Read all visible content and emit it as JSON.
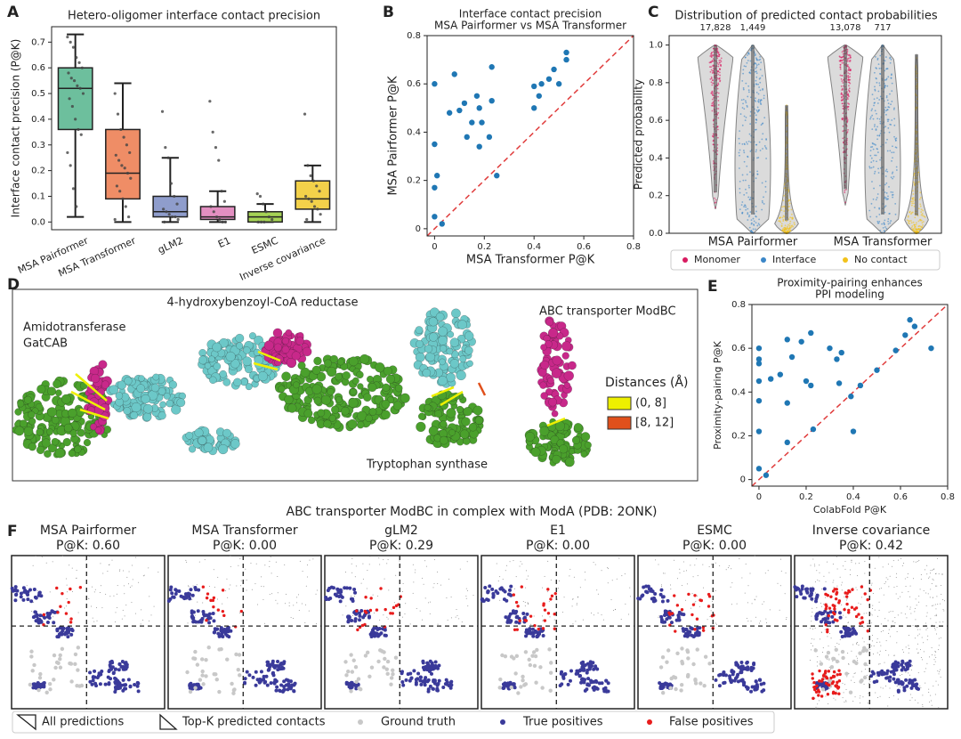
{
  "chart_data": [
    {
      "type": "box",
      "panel": "A",
      "title": "Hetero-oligomer interface contact precision",
      "ylabel": "Interface contact precision (P@K)",
      "categories": [
        "MSA Pairformer",
        "MSA Transformer",
        "gLM2",
        "E1",
        "ESMC",
        "Inverse covariance"
      ],
      "colors": [
        "#6dbf9d",
        "#ef8d66",
        "#8f9dcc",
        "#e38fc1",
        "#a5d255",
        "#f3d14a"
      ],
      "boxes": [
        {
          "min": 0.02,
          "q1": 0.36,
          "median": 0.52,
          "q3": 0.6,
          "max": 0.73,
          "points": [
            0.72,
            0.7,
            0.68,
            0.64,
            0.62,
            0.6,
            0.58,
            0.56,
            0.55,
            0.53,
            0.52,
            0.5,
            0.48,
            0.45,
            0.4,
            0.36,
            0.34,
            0.27,
            0.22,
            0.13,
            0.06
          ]
        },
        {
          "min": 0.0,
          "q1": 0.09,
          "median": 0.19,
          "q3": 0.36,
          "max": 0.54,
          "points": [
            0.5,
            0.42,
            0.36,
            0.33,
            0.3,
            0.27,
            0.26,
            0.24,
            0.22,
            0.21,
            0.19,
            0.17,
            0.14,
            0.12,
            0.09,
            0.06,
            0.02,
            0.01
          ]
        },
        {
          "min": 0.0,
          "q1": 0.02,
          "median": 0.04,
          "q3": 0.1,
          "max": 0.25,
          "points": [
            0.43,
            0.29,
            0.25,
            0.15,
            0.1,
            0.07,
            0.05,
            0.04,
            0.03,
            0.02,
            0.02,
            0.01,
            0.0
          ]
        },
        {
          "min": 0.0,
          "q1": 0.01,
          "median": 0.02,
          "q3": 0.06,
          "max": 0.12,
          "points": [
            0.47,
            0.35,
            0.29,
            0.24,
            0.12,
            0.08,
            0.06,
            0.04,
            0.02,
            0.01,
            0.0,
            0.0
          ]
        },
        {
          "min": 0.0,
          "q1": 0.0,
          "median": 0.02,
          "q3": 0.04,
          "max": 0.07,
          "points": [
            0.11,
            0.1,
            0.07,
            0.04,
            0.02,
            0.01,
            0.0,
            0.0,
            0.0
          ]
        },
        {
          "min": 0.0,
          "q1": 0.05,
          "median": 0.09,
          "q3": 0.16,
          "max": 0.22,
          "points": [
            0.42,
            0.22,
            0.18,
            0.16,
            0.14,
            0.12,
            0.1,
            0.09,
            0.08,
            0.06,
            0.05,
            0.03,
            0.01
          ]
        }
      ],
      "ylim": [
        -0.03,
        0.76
      ],
      "yticks": [
        {
          "value": 0,
          "label": "0.0"
        },
        0.1,
        0.2,
        0.3,
        0.4,
        0.5,
        0.6,
        0.7
      ]
    },
    {
      "type": "scatter",
      "panel": "B",
      "title": "Interface contact precision",
      "subtitle": "MSA Pairformer vs MSA Transformer",
      "xlabel": "MSA Transformer P@K",
      "ylabel": "MSA Pairformer P@K",
      "color": "#1f77b4",
      "diagonal": true,
      "diagonal_color": "#e03c3c",
      "x": [
        0,
        0,
        0,
        0,
        0.01,
        0.03,
        0.06,
        0.08,
        0.1,
        0.12,
        0.13,
        0.15,
        0.17,
        0.18,
        0.18,
        0.19,
        0.22,
        0.23,
        0.23,
        0.25,
        0.4,
        0.4,
        0.42,
        0.43,
        0.46,
        0.48,
        0.5,
        0.53,
        0.53
      ],
      "values": [
        0.6,
        0.35,
        0.17,
        0.05,
        0.22,
        0.02,
        0.48,
        0.64,
        0.49,
        0.52,
        0.38,
        0.44,
        0.55,
        0.5,
        0.34,
        0.44,
        0.38,
        0.67,
        0.53,
        0.22,
        0.5,
        0.59,
        0.55,
        0.6,
        0.62,
        0.66,
        0.6,
        0.7,
        0.73
      ],
      "xlim": [
        -0.03,
        0.8
      ],
      "ylim": [
        -0.03,
        0.8
      ],
      "xticks": [
        0,
        0.2,
        0.4,
        0.6,
        0.8
      ],
      "yticks": [
        0,
        0.2,
        0.4,
        0.6,
        0.8
      ]
    },
    {
      "type": "violin",
      "panel": "C",
      "title": "Distribution of predicted contact probabilities",
      "ylabel": "Predicted probability",
      "groups": [
        "MSA Pairformer",
        "MSA Transformer"
      ],
      "series": [
        {
          "name": "Monomer",
          "color": "#d81b60",
          "ranges": [
            [
              0.13,
              1.0
            ],
            [
              0.15,
              1.0
            ]
          ],
          "values": [
            17828,
            13078
          ],
          "value_labels": [
            "17,828",
            "13,078"
          ]
        },
        {
          "name": "Interface",
          "color": "#3a86c8",
          "ranges": [
            [
              0,
              1.0
            ],
            [
              0,
              1.0
            ]
          ],
          "values": [
            1449,
            717
          ],
          "value_labels": [
            "1,449",
            "717"
          ]
        },
        {
          "name": "No contact",
          "color": "#f2c21b",
          "ranges": [
            [
              0,
              0.68
            ],
            [
              0,
              0.95
            ]
          ]
        }
      ],
      "ylim": [
        0,
        1.05
      ],
      "yticks": [
        {
          "value": 0,
          "label": "0.0"
        },
        0.2,
        0.4,
        0.6,
        0.8,
        {
          "value": 1,
          "label": "1.0"
        }
      ]
    },
    {
      "type": "scatter",
      "panel": "E",
      "title": "Proximity-pairing enhances",
      "subtitle": "PPI modeling",
      "xlabel": "ColabFold P@K",
      "ylabel": "Proximity-pairing P@K",
      "color": "#1f77b4",
      "diagonal": true,
      "diagonal_color": "#e03c3c",
      "x": [
        0,
        0,
        0,
        0,
        0,
        0,
        0,
        0.03,
        0.05,
        0.09,
        0.12,
        0.12,
        0.12,
        0.14,
        0.18,
        0.2,
        0.22,
        0.22,
        0.23,
        0.3,
        0.33,
        0.34,
        0.35,
        0.39,
        0.4,
        0.43,
        0.5,
        0.58,
        0.62,
        0.64,
        0.66,
        0.73
      ],
      "values": [
        0.6,
        0.55,
        0.53,
        0.45,
        0.36,
        0.22,
        0.05,
        0.02,
        0.46,
        0.48,
        0.64,
        0.35,
        0.17,
        0.56,
        0.63,
        0.45,
        0.67,
        0.43,
        0.23,
        0.6,
        0.55,
        0.44,
        0.58,
        0.38,
        0.22,
        0.43,
        0.5,
        0.59,
        0.66,
        0.73,
        0.7,
        0.6
      ],
      "xlim": [
        -0.03,
        0.8
      ],
      "ylim": [
        -0.03,
        0.8
      ],
      "xticks": [
        0,
        0.2,
        0.4,
        0.6,
        0.8
      ],
      "yticks": [
        0,
        0.2,
        0.4,
        0.6,
        0.8
      ]
    }
  ],
  "panel_d": {
    "letter": "D",
    "labels": [
      "4-hydroxybenzoyl-CoA reductase",
      "Amidotransferase",
      "GatCAB",
      "ABC transporter ModBC",
      "Tryptophan synthase"
    ],
    "legend_title": "Distances (Å)",
    "legend": [
      {
        "label": "(0, 8]",
        "color": "#eef000"
      },
      {
        "label": "[8, 12]",
        "color": "#e0501c"
      }
    ]
  },
  "panel_f": {
    "letter": "F",
    "title": "ABC transporter ModBC in complex with ModA (PDB: 2ONK)",
    "maps": [
      {
        "name": "MSA Pairformer",
        "score": "P@K: 0.60"
      },
      {
        "name": "MSA Transformer",
        "score": "P@K: 0.00"
      },
      {
        "name": "gLM2",
        "score": "P@K: 0.29"
      },
      {
        "name": "E1",
        "score": "P@K: 0.00"
      },
      {
        "name": "ESMC",
        "score": "P@K: 0.00"
      },
      {
        "name": "Inverse covariance",
        "score": "P@K: 0.42"
      }
    ],
    "legend": [
      "All predictions",
      "Top-K predicted contacts",
      "Ground truth",
      "True positives",
      "False positives"
    ]
  }
}
